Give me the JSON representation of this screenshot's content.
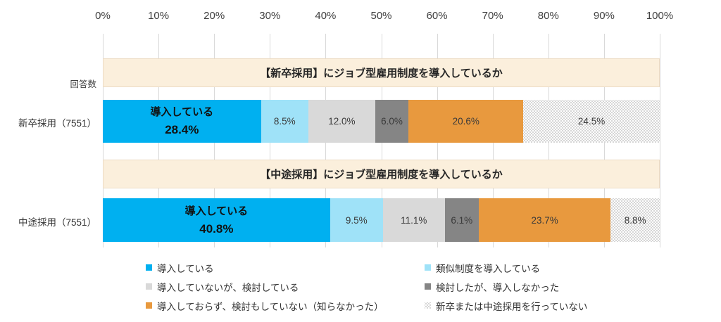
{
  "responses_label": "回答数",
  "chart_data": {
    "type": "bar",
    "subtype": "horizontal-stacked",
    "xlim": [
      0,
      100
    ],
    "grid": true,
    "legend_position": "bottom",
    "tick_labels": [
      "0%",
      "10%",
      "20%",
      "30%",
      "40%",
      "50%",
      "60%",
      "70%",
      "80%",
      "90%",
      "100%"
    ],
    "segment_series": [
      "導入している",
      "類似制度を導入している",
      "導入していないが、検討している",
      "検討したが、導入しなかった",
      "導入しておらず、検討もしていない（知らなかった）",
      "新卒または中途採用を行っていない"
    ],
    "segment_swatches": [
      "introduced",
      "similar",
      "considering",
      "considered_not_introduced",
      "not_introduced_unknown",
      "no_hiring"
    ],
    "categories": [
      "新卒採用（7551）",
      "中途採用（7551）"
    ],
    "charts": [
      {
        "title": "【新卒採用】にジョブ型雇用制度を導入しているか",
        "category": "新卒採用（7551）",
        "values": [
          28.4,
          8.5,
          12.0,
          6.0,
          20.6,
          24.5
        ]
      },
      {
        "title": "【中途採用】にジョブ型雇用制度を導入しているか",
        "category": "中途採用（7551）",
        "values": [
          40.8,
          9.5,
          11.1,
          6.1,
          23.7,
          8.8
        ]
      }
    ]
  },
  "legend": {
    "columns": [
      [
        {
          "label": "導入している",
          "swatch": "introduced"
        },
        {
          "label": "導入していないが、検討している",
          "swatch": "considering"
        },
        {
          "label": "導入しておらず、検討もしていない（知らなかった）",
          "swatch": "not_introduced_unknown"
        }
      ],
      [
        {
          "label": "類似制度を導入している",
          "swatch": "similar"
        },
        {
          "label": "検討したが、導入しなかった",
          "swatch": "considered_not_introduced"
        },
        {
          "label": "新卒または中途採用を行っていない",
          "swatch": "no_hiring"
        }
      ]
    ]
  },
  "colors": {
    "introduced": "#00B0F0",
    "similar": "#9FE2F8",
    "considering": "#D9D9D9",
    "considered_not_introduced": "#858585",
    "not_introduced_unknown": "#E8993E",
    "no_hiring_dot": "#C8C8C8",
    "header_bg": "#FBEFDC",
    "header_border": "#EDDCC4",
    "gridline": "#D9D9D9",
    "axis_text": "#404040"
  }
}
